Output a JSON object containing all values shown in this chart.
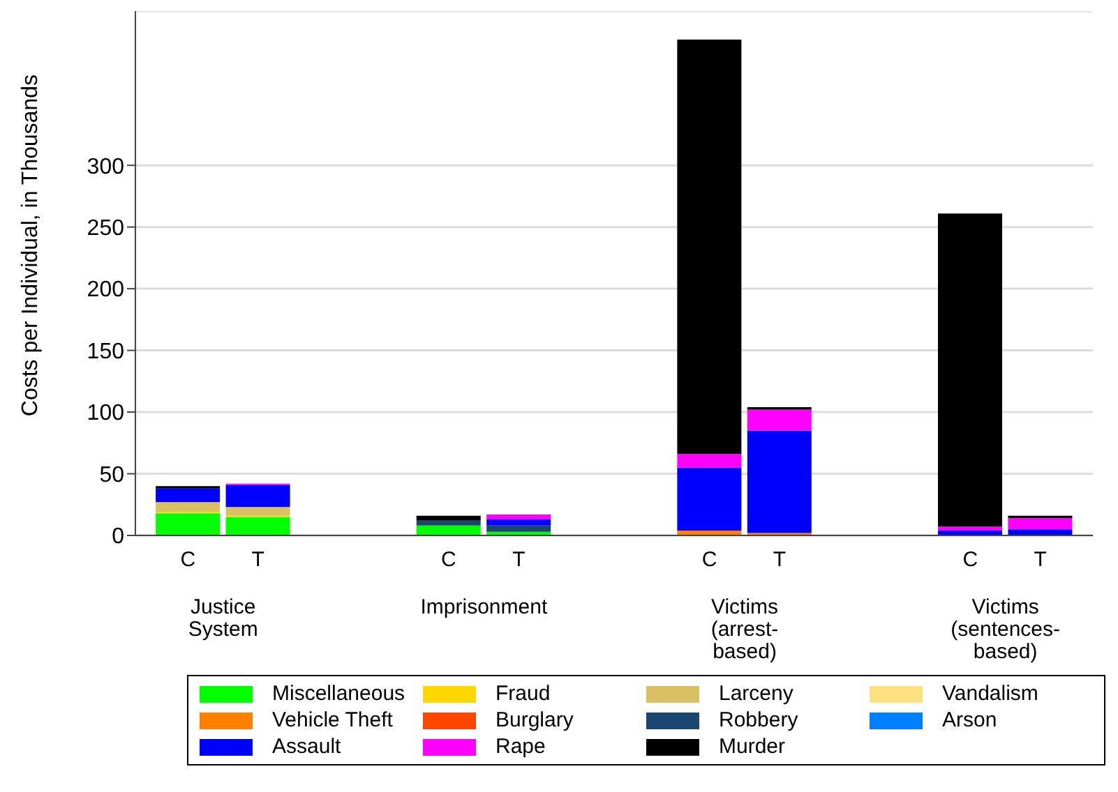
{
  "chart_data": {
    "type": "bar",
    "stacked": true,
    "ylabel": "Costs per Individual, in Thousands",
    "categories": [
      "C",
      "T",
      "C",
      "T",
      "C",
      "T",
      "C",
      "T"
    ],
    "annotations": [
      "Justice System",
      "Imprisonment",
      "Victims (arrest-based)",
      "Victims (sentences-based)"
    ],
    "series": [
      {
        "name": "Miscellaneous",
        "color": "#00ff00",
        "values": [
          18,
          15,
          8,
          3,
          0,
          0,
          0,
          0
        ]
      },
      {
        "name": "Fraud",
        "color": "#ffd700",
        "values": [
          1,
          1,
          0,
          0,
          0,
          0,
          0,
          0
        ]
      },
      {
        "name": "Larceny",
        "color": "#d9c062",
        "values": [
          8,
          7,
          0,
          0,
          0,
          0,
          0,
          0
        ]
      },
      {
        "name": "Vandalism",
        "color": "#ffe27f",
        "values": [
          0,
          0,
          0,
          0,
          0,
          0,
          0,
          0
        ]
      },
      {
        "name": "Vehicle Theft",
        "color": "#ff8000",
        "values": [
          0,
          0,
          0,
          0,
          4,
          2,
          0,
          0
        ]
      },
      {
        "name": "Burglary",
        "color": "#ff4500",
        "values": [
          0,
          0,
          0,
          0,
          0,
          0,
          0,
          0
        ]
      },
      {
        "name": "Robbery",
        "color": "#1a4670",
        "values": [
          0,
          0,
          4,
          5,
          0,
          0,
          0,
          0
        ]
      },
      {
        "name": "Arson",
        "color": "#0080ff",
        "values": [
          0,
          0,
          0,
          0,
          0,
          0,
          0,
          0
        ]
      },
      {
        "name": "Assault",
        "color": "#0000ff",
        "values": [
          11,
          18,
          0,
          5,
          51,
          83,
          4,
          5
        ]
      },
      {
        "name": "Rape",
        "color": "#ff00ff",
        "values": [
          0,
          1,
          0,
          4,
          11,
          17,
          3,
          9
        ]
      },
      {
        "name": "Murder",
        "color": "#000000",
        "values": [
          2,
          0,
          4,
          0,
          336,
          2,
          254,
          2
        ]
      }
    ],
    "ylim": [
      0,
      425
    ],
    "yticks": [
      0,
      50,
      100,
      150,
      200,
      250,
      300
    ],
    "grid": "y",
    "legend": "bottom"
  }
}
